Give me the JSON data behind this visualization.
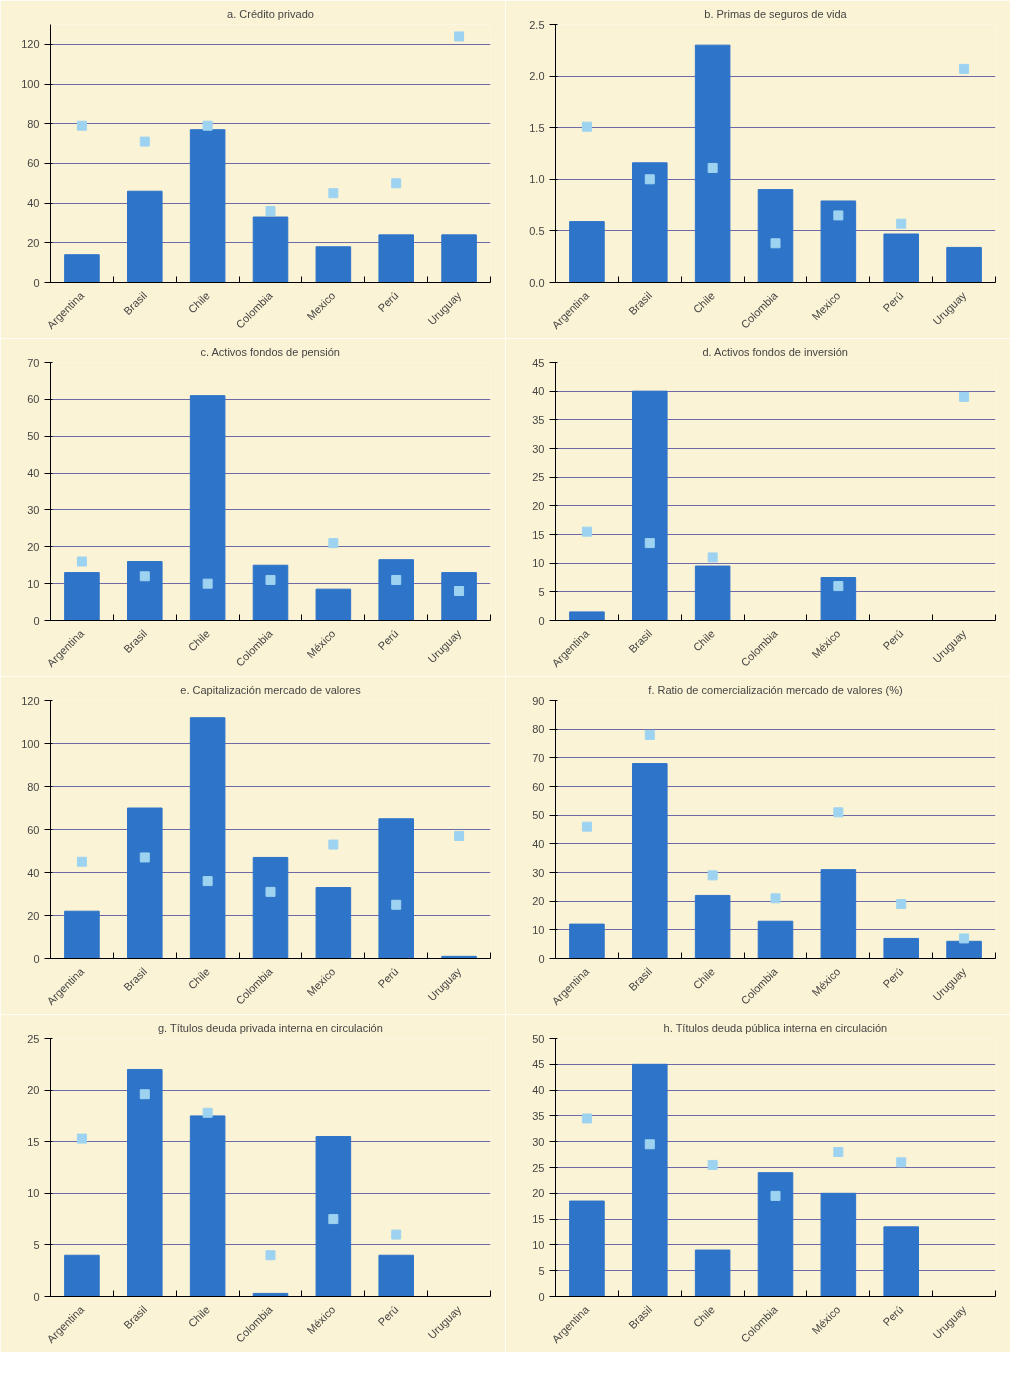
{
  "chart_data": [
    {
      "type": "bar",
      "title": "a. Crédito privado",
      "categories": [
        "Argentina",
        "Brasil",
        "Chile",
        "Colombia",
        "Mexico",
        "Perú",
        "Uruguay"
      ],
      "ylim": [
        0,
        130
      ],
      "yticks": [
        0,
        20,
        40,
        60,
        80,
        100,
        120
      ],
      "grid": "y",
      "series": [
        {
          "color": "#2e74c9",
          "values": [
            14,
            46,
            77,
            33,
            18,
            24,
            24
          ]
        },
        {
          "type": "scatter",
          "marker": "square",
          "color": "#9dd3f0",
          "values": [
            79,
            71,
            79,
            36,
            45,
            50,
            124
          ]
        }
      ]
    },
    {
      "type": "bar",
      "title": "b. Primas de seguros de vida",
      "categories": [
        "Argentina",
        "Brasil",
        "Chile",
        "Colombia",
        "Mexico",
        "Perú",
        "Uruguay"
      ],
      "ylim": [
        0,
        2.5
      ],
      "yticks": [
        {
          "value": 0,
          "label": "0.0"
        },
        0.5,
        {
          "value": 1,
          "label": "1.0"
        },
        1.5,
        {
          "value": 2,
          "label": "2.0"
        },
        2.5
      ],
      "grid": "y",
      "series": [
        {
          "color": "#2e74c9",
          "values": [
            0.59,
            1.16,
            2.3,
            0.9,
            0.79,
            0.47,
            0.34
          ]
        },
        {
          "type": "scatter",
          "marker": "square",
          "color": "#9dd3f0",
          "values": [
            1.51,
            1.0,
            1.11,
            0.38,
            0.65,
            0.57,
            2.07
          ]
        }
      ]
    },
    {
      "type": "bar",
      "title": "c. Activos fondos de pensión",
      "categories": [
        "Argentina",
        "Brasil",
        "Chile",
        "Colombia",
        "México",
        "Perú",
        "Uruguay"
      ],
      "ylim": [
        0,
        70
      ],
      "yticks": [
        0,
        10,
        20,
        30,
        40,
        50,
        60,
        70
      ],
      "grid": "y",
      "series": [
        {
          "color": "#2e74c9",
          "values": [
            13,
            16,
            61,
            15,
            8.5,
            16.5,
            13
          ]
        },
        {
          "type": "scatter",
          "marker": "square",
          "color": "#9dd3f0",
          "values": [
            16,
            12,
            10,
            11,
            21,
            11,
            8
          ]
        }
      ]
    },
    {
      "type": "bar",
      "title": "d. Activos fondos de inversión",
      "categories": [
        "Argentina",
        "Brasil",
        "Chile",
        "Colombia",
        "México",
        "Perú",
        "Uruguay"
      ],
      "ylim": [
        0,
        45
      ],
      "yticks": [
        0,
        5,
        10,
        15,
        20,
        25,
        30,
        35,
        40,
        45
      ],
      "grid": "y",
      "series": [
        {
          "color": "#2e74c9",
          "values": [
            1.5,
            40,
            9.5,
            null,
            7.5,
            null,
            null
          ]
        },
        {
          "type": "scatter",
          "marker": "square",
          "color": "#9dd3f0",
          "values": [
            15.5,
            13.5,
            11,
            null,
            6,
            null,
            39
          ]
        }
      ]
    },
    {
      "type": "bar",
      "title": "e. Capitalización mercado de valores",
      "categories": [
        "Argentina",
        "Brasil",
        "Chile",
        "Colombia",
        "Mexico",
        "Perú",
        "Uruguay"
      ],
      "ylim": [
        0,
        120
      ],
      "yticks": [
        0,
        20,
        40,
        60,
        80,
        100,
        120
      ],
      "grid": "y",
      "series": [
        {
          "color": "#2e74c9",
          "values": [
            22,
            70,
            112,
            47,
            33,
            65,
            1
          ]
        },
        {
          "type": "scatter",
          "marker": "square",
          "color": "#9dd3f0",
          "values": [
            45,
            47,
            36,
            31,
            53,
            25,
            57
          ]
        }
      ]
    },
    {
      "type": "bar",
      "title": "f. Ratio de comercialización mercado de valores (%)",
      "categories": [
        "Argentina",
        "Brasil",
        "Chile",
        "Colombia",
        "México",
        "Perú",
        "Uruguay"
      ],
      "ylim": [
        0,
        90
      ],
      "yticks": [
        0,
        10,
        20,
        30,
        40,
        50,
        60,
        70,
        80,
        90
      ],
      "grid": "y",
      "series": [
        {
          "color": "#2e74c9",
          "values": [
            12,
            68,
            22,
            13,
            31,
            7,
            6
          ]
        },
        {
          "type": "scatter",
          "marker": "square",
          "color": "#9dd3f0",
          "values": [
            46,
            78,
            29,
            21,
            51,
            19,
            7
          ]
        }
      ]
    },
    {
      "type": "bar",
      "title": "g. Títulos deuda privada interna en circulación",
      "categories": [
        "Argentina",
        "Brasil",
        "Chile",
        "Colombia",
        "México",
        "Perú",
        "Uruguay"
      ],
      "ylim": [
        0,
        25
      ],
      "yticks": [
        0,
        5,
        10,
        15,
        20,
        25
      ],
      "grid": "y",
      "series": [
        {
          "color": "#2e74c9",
          "values": [
            4,
            22,
            17.5,
            0.3,
            15.5,
            4,
            null
          ]
        },
        {
          "type": "scatter",
          "marker": "square",
          "color": "#9dd3f0",
          "values": [
            15.3,
            19.6,
            17.8,
            4,
            7.5,
            6,
            null
          ]
        }
      ]
    },
    {
      "type": "bar",
      "title": "h. Títulos deuda pública interna en circulación",
      "categories": [
        "Argentina",
        "Brasil",
        "Chile",
        "Colombia",
        "México",
        "Perú",
        "Uruguay"
      ],
      "ylim": [
        0,
        50
      ],
      "yticks": [
        0,
        5,
        10,
        15,
        20,
        25,
        30,
        35,
        40,
        45,
        50
      ],
      "grid": "y",
      "series": [
        {
          "color": "#2e74c9",
          "values": [
            18.5,
            45,
            9,
            24,
            20,
            13.5,
            null
          ]
        },
        {
          "type": "scatter",
          "marker": "square",
          "color": "#9dd3f0",
          "values": [
            34.5,
            29.5,
            25.5,
            19.5,
            28,
            26,
            null
          ]
        }
      ]
    }
  ]
}
